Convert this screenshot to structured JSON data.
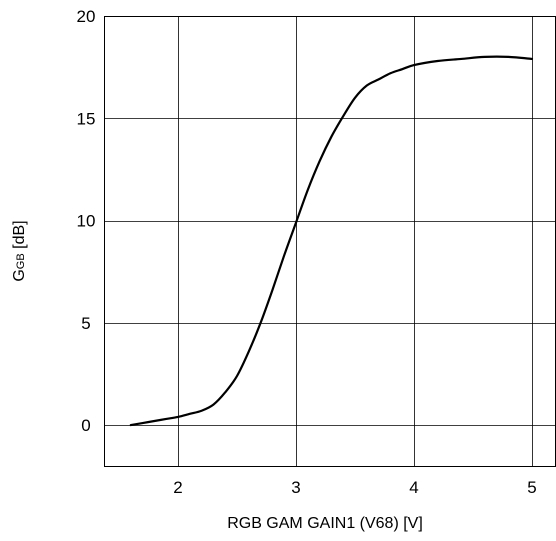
{
  "chart_data": {
    "type": "line",
    "title": "",
    "xlabel": "RGB GAM GAIN1 (V68) [V]",
    "ylabel": "GGB [dB]",
    "ylabel_main": "G",
    "ylabel_sub": "GB",
    "ylabel_unit": " [dB]",
    "xlim": [
      1.0,
      5.0
    ],
    "ylim": [
      -2.0,
      20.0
    ],
    "xticks": [
      2,
      3,
      4,
      5
    ],
    "yticks": [
      0,
      5,
      10,
      15,
      20
    ],
    "grid": true,
    "series": [
      {
        "x": [
          1.6,
          1.7,
          1.8,
          1.9,
          2.0,
          2.1,
          2.2,
          2.3,
          2.4,
          2.5,
          2.6,
          2.7,
          2.8,
          2.9,
          3.0,
          3.1,
          3.2,
          3.3,
          3.4,
          3.5,
          3.6,
          3.7,
          3.8,
          3.9,
          4.0,
          4.2,
          4.4,
          4.6,
          4.8,
          5.0
        ],
        "y": [
          0.0,
          0.1,
          0.2,
          0.3,
          0.4,
          0.55,
          0.7,
          1.0,
          1.6,
          2.4,
          3.6,
          5.0,
          6.6,
          8.3,
          9.9,
          11.5,
          12.9,
          14.1,
          15.1,
          16.0,
          16.6,
          16.9,
          17.2,
          17.4,
          17.6,
          17.8,
          17.9,
          18.0,
          18.0,
          17.9
        ]
      }
    ]
  }
}
